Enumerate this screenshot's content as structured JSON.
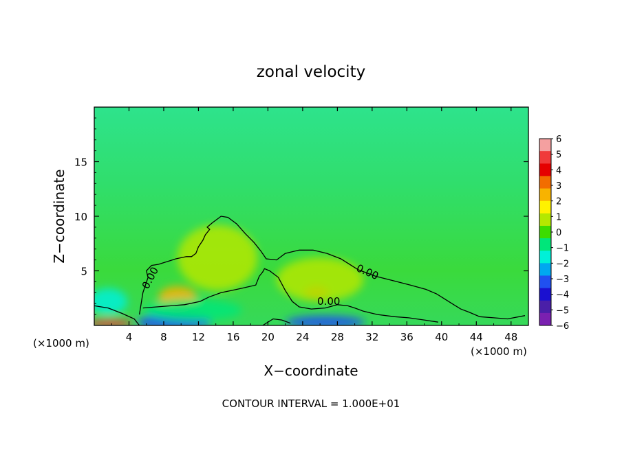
{
  "chart_data": {
    "type": "heatmap",
    "title": "zonal velocity",
    "xlabel": "X−coordinate",
    "ylabel": "Z−coordinate",
    "x_unit_left": "(×1000 m)",
    "x_unit_right": "(×1000 m)",
    "footer": "CONTOUR INTERVAL = 1.000E+01",
    "xlim": [
      0,
      50
    ],
    "ylim": [
      0,
      20
    ],
    "x_ticks": [
      "4",
      "8",
      "12",
      "16",
      "20",
      "24",
      "28",
      "32",
      "36",
      "40",
      "44",
      "48"
    ],
    "y_ticks": [
      "5",
      "10",
      "15"
    ],
    "contour_labels": [
      "0.00",
      "0.00",
      "0.00"
    ],
    "colorbar": {
      "labels": [
        "6",
        "5",
        "4",
        "3",
        "2",
        "1",
        "0",
        "−1",
        "−2",
        "−3",
        "−4",
        "−5",
        "−6"
      ],
      "colors": [
        "#f4a0a0",
        "#f03a3a",
        "#e50000",
        "#f26d00",
        "#f8b300",
        "#fff200",
        "#b4e800",
        "#3cdc00",
        "#00e67a",
        "#00f0d8",
        "#00a8f0",
        "#2050f0",
        "#1a10d0",
        "#4a1fa8",
        "#7a20b0"
      ]
    },
    "zero_contour_upper": [
      [
        5.2,
        1.0
      ],
      [
        5.6,
        3.0
      ],
      [
        6.2,
        4.4
      ],
      [
        6.0,
        5.0
      ],
      [
        6.6,
        5.5
      ],
      [
        7.4,
        5.6
      ],
      [
        8.6,
        5.9
      ],
      [
        9.4,
        6.1
      ],
      [
        10.6,
        6.3
      ],
      [
        11.2,
        6.3
      ],
      [
        11.7,
        6.6
      ],
      [
        12.0,
        7.2
      ],
      [
        12.5,
        7.8
      ],
      [
        12.8,
        8.3
      ],
      [
        13.3,
        8.8
      ],
      [
        13.0,
        9.0
      ],
      [
        13.6,
        9.4
      ],
      [
        14.6,
        10.0
      ],
      [
        15.4,
        9.9
      ],
      [
        16.4,
        9.3
      ],
      [
        17.4,
        8.4
      ],
      [
        18.4,
        7.6
      ],
      [
        19.2,
        6.8
      ],
      [
        19.8,
        6.1
      ],
      [
        21.0,
        6.0
      ],
      [
        22.0,
        6.6
      ],
      [
        23.6,
        6.9
      ],
      [
        25.2,
        6.9
      ],
      [
        26.8,
        6.6
      ],
      [
        28.4,
        6.1
      ],
      [
        30.4,
        5.1
      ],
      [
        32.4,
        4.5
      ],
      [
        34.4,
        4.1
      ],
      [
        36.4,
        3.7
      ],
      [
        38.2,
        3.3
      ],
      [
        39.4,
        2.9
      ],
      [
        40.4,
        2.4
      ],
      [
        41.4,
        1.9
      ],
      [
        42.2,
        1.5
      ],
      [
        43.2,
        1.2
      ],
      [
        44.4,
        0.8
      ],
      [
        46.0,
        0.7
      ],
      [
        47.6,
        0.6
      ],
      [
        49.6,
        0.9
      ]
    ],
    "zero_contour_lower": [
      [
        5.6,
        1.6
      ],
      [
        7.2,
        1.7
      ],
      [
        10.4,
        1.9
      ],
      [
        12.2,
        2.2
      ],
      [
        13.2,
        2.6
      ],
      [
        14.6,
        3.0
      ],
      [
        15.8,
        3.2
      ],
      [
        17.0,
        3.4
      ],
      [
        18.6,
        3.7
      ],
      [
        19.0,
        4.5
      ],
      [
        19.4,
        4.9
      ],
      [
        19.6,
        5.2
      ],
      [
        20.2,
        5.0
      ],
      [
        21.2,
        4.4
      ],
      [
        22.0,
        3.2
      ],
      [
        22.8,
        2.2
      ],
      [
        23.6,
        1.7
      ],
      [
        25.0,
        1.5
      ],
      [
        26.6,
        1.6
      ],
      [
        28.0,
        1.9
      ],
      [
        29.2,
        1.8
      ],
      [
        30.0,
        1.6
      ],
      [
        31.0,
        1.3
      ],
      [
        32.6,
        1.0
      ],
      [
        34.6,
        0.8
      ],
      [
        36.2,
        0.7
      ],
      [
        38.0,
        0.5
      ],
      [
        39.6,
        0.3
      ]
    ],
    "zero_contour_surface_left": [
      [
        0.0,
        1.8
      ],
      [
        1.6,
        1.6
      ],
      [
        3.2,
        1.1
      ],
      [
        4.6,
        0.6
      ],
      [
        5.2,
        0.0
      ]
    ],
    "zero_contour_surface_mid": [
      [
        19.4,
        0.0
      ],
      [
        20.6,
        0.6
      ],
      [
        21.6,
        0.5
      ],
      [
        22.6,
        0.2
      ]
    ],
    "blobs": [
      {
        "x": 9.6,
        "y": 2.6,
        "rx": 2.2,
        "ry": 1.0,
        "color": "#f8b300"
      },
      {
        "x": 25.6,
        "y": 3.0,
        "rx": 1.4,
        "ry": 0.6,
        "color": "#f26d00"
      },
      {
        "x": 9.2,
        "y": 0.3,
        "rx": 4.2,
        "ry": 0.8,
        "color": "#2050f0"
      },
      {
        "x": 26.6,
        "y": 0.3,
        "rx": 4.6,
        "ry": 0.6,
        "color": "#2050f0"
      },
      {
        "x": 1.8,
        "y": 0.2,
        "rx": 2.6,
        "ry": 0.4,
        "color": "#f03a3a"
      },
      {
        "x": 14.2,
        "y": 6.2,
        "rx": 4.6,
        "ry": 3.0,
        "color": "#b4e800"
      },
      {
        "x": 26.0,
        "y": 4.2,
        "rx": 5.0,
        "ry": 2.0,
        "color": "#b4e800"
      },
      {
        "x": 1.6,
        "y": 2.2,
        "rx": 2.2,
        "ry": 1.2,
        "color": "#00f0d8"
      },
      {
        "x": 11.4,
        "y": 1.4,
        "rx": 5.6,
        "ry": 1.0,
        "color": "#00e67a"
      }
    ]
  }
}
